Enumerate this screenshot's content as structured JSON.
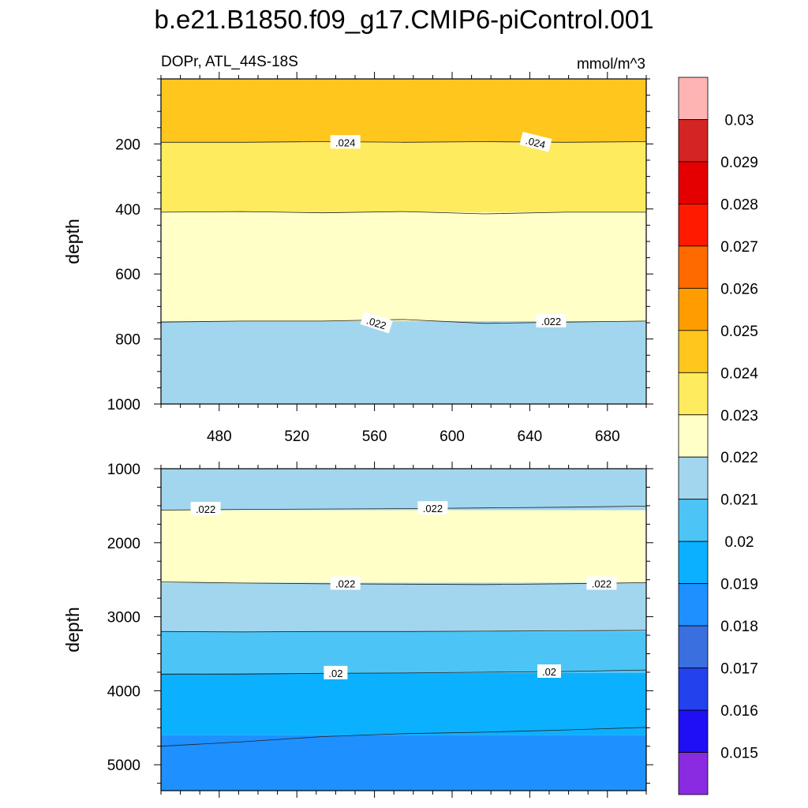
{
  "title": "b.e21.B1850.f09_g17.CMIP6-piControl.001",
  "subtitle_left": "DOPr, ATL_44S-18S",
  "subtitle_right": "mmol/m^3",
  "colors": {
    "0.015": "#8a2be2",
    "0.016": "#1f0ff5",
    "0.017": "#2341ed",
    "0.018": "#3a6fe0",
    "0.019": "#1e90ff",
    "0.02": "#0bb0ff",
    "0.021": "#4cc4f5",
    "0.022": "#a2d6ee",
    "0.023": "#ffffc8",
    "0.024": "#ffeb5e",
    "0.025": "#ffc61e",
    "0.026": "#ff9d00",
    "0.027": "#ff6a00",
    "0.028": "#ff1a00",
    "0.029": "#e50000",
    "0.03": "#d42424",
    "over": "#ffb4b4"
  },
  "chart_data": [
    {
      "type": "heatmap",
      "name": "upper panel",
      "xlabel": "",
      "ylabel": "depth",
      "xlim": [
        450,
        700
      ],
      "ylim": [
        1000,
        0
      ],
      "x_ticks": [
        480,
        520,
        560,
        600,
        640,
        680
      ],
      "y_ticks": [
        200,
        400,
        600,
        800,
        1000
      ],
      "fill_bands": [
        {
          "from_depth": 0,
          "to_depth": 195,
          "range": "0.024-0.025",
          "color_key": "0.025"
        },
        {
          "from_depth": 195,
          "to_depth": 410,
          "range": "0.023-0.024",
          "color_key": "0.024"
        },
        {
          "from_depth": 410,
          "to_depth": 745,
          "range": "0.022-0.023",
          "color_key": "0.023"
        },
        {
          "from_depth": 745,
          "to_depth": 1000,
          "range": "0.021-0.022",
          "color_key": "0.022"
        }
      ],
      "contour_lines": [
        {
          "level": 0.024,
          "depth": [
            195,
            195,
            193,
            195,
            193,
            195,
            193
          ]
        },
        {
          "level": 0.023,
          "depth": [
            410,
            408,
            412,
            408,
            415,
            410,
            410
          ]
        },
        {
          "level": 0.022,
          "depth": [
            748,
            745,
            745,
            740,
            752,
            748,
            745
          ]
        }
      ],
      "contour_labels": [
        {
          "text": ".024",
          "x": 545,
          "depth": 195,
          "angle": 0
        },
        {
          "text": ".024",
          "x": 643,
          "depth": 195,
          "angle": 14
        },
        {
          "text": ".022",
          "x": 561,
          "depth": 750,
          "angle": 18
        },
        {
          "text": ".022",
          "x": 651,
          "depth": 745,
          "angle": 0
        }
      ]
    },
    {
      "type": "heatmap",
      "name": "lower panel",
      "xlabel": "",
      "ylabel": "depth",
      "xlim": [
        450,
        700
      ],
      "ylim": [
        5350,
        1000
      ],
      "x_ticks": [
        480,
        520,
        560,
        600,
        640,
        680
      ],
      "y_ticks": [
        1000,
        2000,
        3000,
        4000,
        5000
      ],
      "fill_bands": [
        {
          "from_depth": 1000,
          "to_depth": 1560,
          "range": "0.021-0.022",
          "color_key": "0.022"
        },
        {
          "from_depth": 1560,
          "to_depth": 2540,
          "range": "0.022-0.023",
          "color_key": "0.023"
        },
        {
          "from_depth": 2540,
          "to_depth": 3200,
          "range": "0.021-0.022",
          "color_key": "0.022"
        },
        {
          "from_depth": 3200,
          "to_depth": 3760,
          "range": "0.020-0.021",
          "color_key": "0.021"
        },
        {
          "from_depth": 3760,
          "to_depth": 4600,
          "range": "0.019-0.020",
          "color_key": "0.02"
        },
        {
          "from_depth": 4600,
          "to_depth": 5350,
          "range": "0.018-0.019",
          "color_key": "0.019"
        }
      ],
      "contour_lines": [
        {
          "level": 0.022,
          "depth": [
            1560,
            1550,
            1545,
            1540,
            1530,
            1520,
            1505
          ]
        },
        {
          "level": 0.022,
          "depth": [
            2530,
            2545,
            2555,
            2560,
            2565,
            2555,
            2540
          ]
        },
        {
          "level": 0.021,
          "depth": [
            3200,
            3205,
            3200,
            3200,
            3195,
            3190,
            3185
          ]
        },
        {
          "level": 0.02,
          "depth": [
            3780,
            3775,
            3765,
            3760,
            3750,
            3740,
            3720
          ]
        },
        {
          "level": 0.019,
          "depth": [
            4750,
            4690,
            4620,
            4580,
            4560,
            4530,
            4495
          ]
        }
      ],
      "contour_labels": [
        {
          "text": ".022",
          "x": 473,
          "depth": 1545,
          "angle": 0
        },
        {
          "text": ".022",
          "x": 590,
          "depth": 1535,
          "angle": 0
        },
        {
          "text": ".022",
          "x": 545,
          "depth": 2550,
          "angle": 0
        },
        {
          "text": ".022",
          "x": 677,
          "depth": 2550,
          "angle": 0
        },
        {
          "text": ".02",
          "x": 540,
          "depth": 3760,
          "angle": 0
        },
        {
          "text": ".02",
          "x": 650,
          "depth": 3740,
          "angle": 0
        }
      ]
    }
  ],
  "colorbar": {
    "labels": [
      "0.03",
      "0.029",
      "0.028",
      "0.027",
      "0.026",
      "0.025",
      "0.024",
      "0.023",
      "0.022",
      "0.021",
      "0.02",
      "0.019",
      "0.018",
      "0.017",
      "0.016",
      "0.015"
    ],
    "box_color_keys": [
      "over",
      "0.03",
      "0.029",
      "0.028",
      "0.027",
      "0.026",
      "0.025",
      "0.024",
      "0.023",
      "0.022",
      "0.021",
      "0.02",
      "0.019",
      "0.018",
      "0.017",
      "0.016",
      "0.015"
    ]
  }
}
